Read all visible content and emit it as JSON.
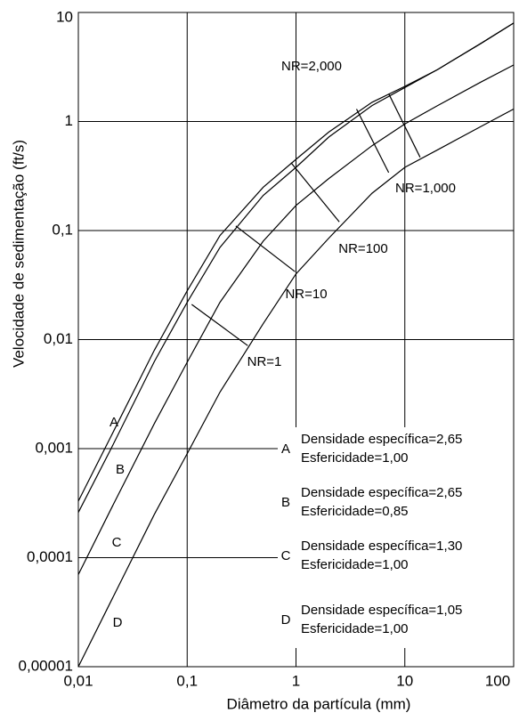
{
  "chart_data": {
    "type": "line",
    "xlabel": "Diâmetro da partícula (mm)",
    "ylabel": "Velocidade de sedimentação (ft/s)",
    "log_x": true,
    "log_y": true,
    "grid": true,
    "color": "#000000",
    "xlim": [
      0.01,
      100
    ],
    "ylim": [
      1e-05,
      10
    ],
    "xticks": [
      {
        "value": 0.01,
        "label": "0,01"
      },
      {
        "value": 0.1,
        "label": "0,1"
      },
      1,
      10,
      100
    ],
    "yticks": [
      {
        "value": 1e-05,
        "label": "0,00001"
      },
      {
        "value": 0.0001,
        "label": "0,0001"
      },
      {
        "value": 0.001,
        "label": "0,001"
      },
      {
        "value": 0.01,
        "label": "0,01"
      },
      {
        "value": 0.1,
        "label": "0,1"
      },
      1,
      10
    ],
    "x": [
      0.01,
      0.02,
      0.05,
      0.1,
      0.2,
      0.5,
      1,
      2,
      5,
      10,
      20,
      50,
      100
    ],
    "series": [
      {
        "name": "A",
        "description": [
          "Densidade específica=2,65",
          "Esfericidade=1,00"
        ],
        "values": [
          0.00033,
          0.0013,
          0.008,
          0.028,
          0.09,
          0.25,
          0.45,
          0.8,
          1.5,
          2.1,
          3,
          5.2,
          8
        ]
      },
      {
        "name": "B",
        "description": [
          "Densidade específica=2,65",
          "Esfericidade=0,85"
        ],
        "values": [
          0.00026,
          0.001,
          0.0063,
          0.022,
          0.07,
          0.21,
          0.38,
          0.72,
          1.4,
          2.05,
          3,
          5.2,
          8
        ]
      },
      {
        "name": "C",
        "description": [
          "Densidade específica=1,30",
          "Esfericidade=1,00"
        ],
        "values": [
          7e-05,
          0.00028,
          0.0017,
          0.0062,
          0.022,
          0.08,
          0.17,
          0.3,
          0.6,
          0.95,
          1.4,
          2.3,
          3.3
        ]
      },
      {
        "name": "D",
        "description": [
          "Densidade específica=1,05",
          "Esfericidade=1,00"
        ],
        "values": [
          1e-05,
          4e-05,
          0.00025,
          0.0009,
          0.0033,
          0.014,
          0.04,
          0.085,
          0.22,
          0.38,
          0.55,
          0.9,
          1.3
        ]
      }
    ],
    "nr_lines": [
      {
        "name": "NR=1",
        "x": [
          0.11,
          0.36
        ],
        "values": [
          0.021,
          0.0088
        ]
      },
      {
        "name": "NR=10",
        "x": [
          0.28,
          0.98
        ],
        "values": [
          0.11,
          0.042
        ]
      },
      {
        "name": "NR=100",
        "x": [
          0.9,
          2.5
        ],
        "values": [
          0.42,
          0.12
        ]
      },
      {
        "name": "NR=1,000",
        "x": [
          3.6,
          7.1
        ],
        "values": [
          1.3,
          0.34
        ]
      },
      {
        "name": "NR=2,000",
        "x": [
          7.1,
          13.8
        ],
        "values": [
          1.8,
          0.47
        ]
      }
    ]
  }
}
